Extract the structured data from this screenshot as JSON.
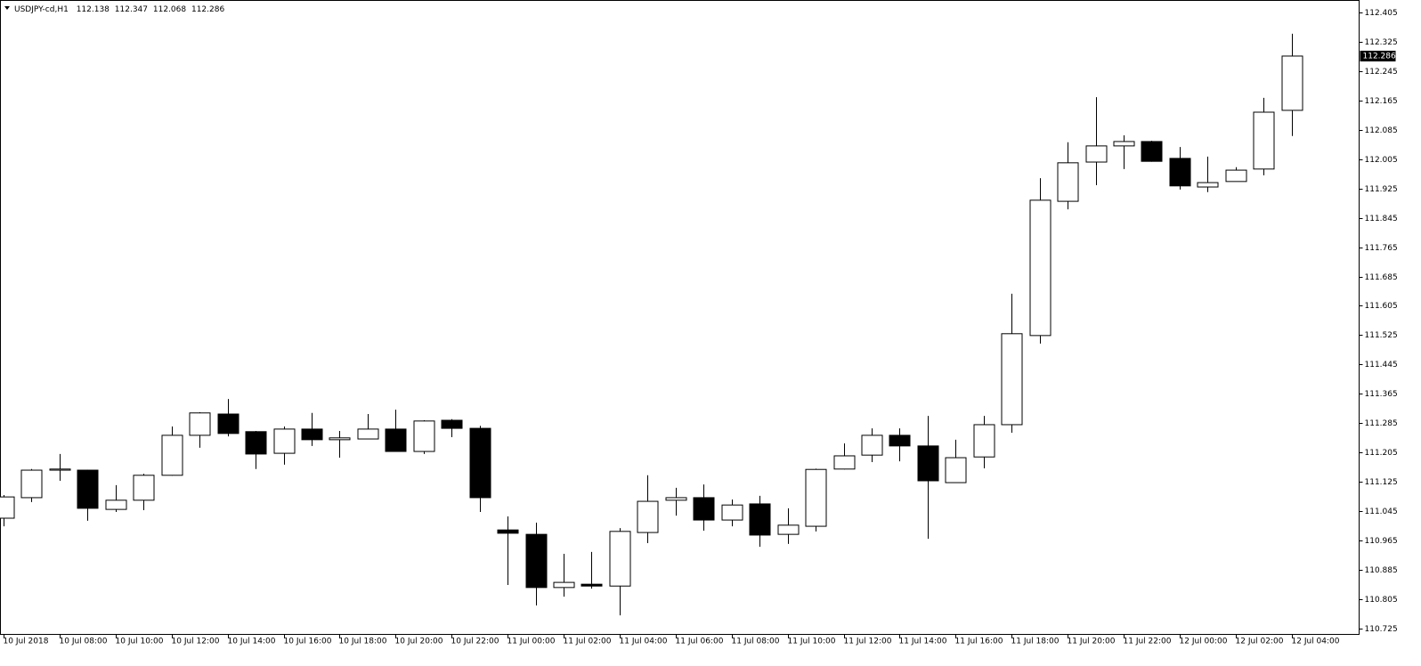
{
  "chart_data": {
    "type": "candlestick",
    "title": "USDJPY-cd,H1",
    "categories": [
      "10 Jul 2018",
      null,
      "10 Jul 08:00",
      null,
      "10 Jul 10:00",
      null,
      "10 Jul 12:00",
      null,
      "10 Jul 14:00",
      null,
      "10 Jul 16:00",
      null,
      "10 Jul 18:00",
      null,
      "10 Jul 20:00",
      null,
      "10 Jul 22:00",
      null,
      "11 Jul 00:00",
      null,
      "11 Jul 02:00",
      null,
      "11 Jul 04:00",
      null,
      "11 Jul 06:00",
      null,
      "11 Jul 08:00",
      null,
      "11 Jul 10:00",
      null,
      "11 Jul 12:00",
      null,
      "11 Jul 14:00",
      null,
      "11 Jul 16:00",
      null,
      "11 Jul 18:00",
      null,
      "11 Jul 20:00",
      null,
      "11 Jul 22:00",
      null,
      "12 Jul 00:00",
      null,
      "12 Jul 02:00",
      null,
      "12 Jul 04:00"
    ],
    "open": [
      111.026,
      111.082,
      111.157,
      111.157,
      111.05,
      111.075,
      111.143,
      111.252,
      111.31,
      111.262,
      111.203,
      111.269,
      111.24,
      111.242,
      111.269,
      111.208,
      111.293,
      111.271,
      110.994,
      110.982,
      110.837,
      110.846,
      110.841,
      110.987,
      111.075,
      111.082,
      111.021,
      111.065,
      110.982,
      111.004,
      111.16,
      111.198,
      111.252,
      111.223,
      111.123,
      111.193,
      111.281,
      111.524,
      111.89,
      111.997,
      112.041,
      112.053,
      112.007,
      111.929,
      111.944,
      111.978,
      112.138
    ],
    "high": [
      111.089,
      111.16,
      111.201,
      111.158,
      111.116,
      111.147,
      111.276,
      111.315,
      111.351,
      111.264,
      111.276,
      111.313,
      111.264,
      111.31,
      111.322,
      111.293,
      111.296,
      111.278,
      111.031,
      111.014,
      110.929,
      110.934,
      110.999,
      111.143,
      111.109,
      111.118,
      111.077,
      111.087,
      111.053,
      111.161,
      111.23,
      111.271,
      111.271,
      111.305,
      111.24,
      111.305,
      111.638,
      111.953,
      112.051,
      112.174,
      112.07,
      112.055,
      112.038,
      112.012,
      111.983,
      112.172,
      112.347
    ],
    "low": [
      111.004,
      111.07,
      111.128,
      111.019,
      111.043,
      111.048,
      111.142,
      111.218,
      111.249,
      111.16,
      111.172,
      111.223,
      111.191,
      111.241,
      111.207,
      111.201,
      111.247,
      111.043,
      110.844,
      110.788,
      110.812,
      110.834,
      110.761,
      110.958,
      111.033,
      110.992,
      111.004,
      110.948,
      110.956,
      110.99,
      111.159,
      111.179,
      111.181,
      110.97,
      111.122,
      111.162,
      111.259,
      111.502,
      111.868,
      111.934,
      111.978,
      111.998,
      111.922,
      111.915,
      111.958,
      111.961,
      112.068
    ],
    "close": [
      111.084,
      111.157,
      111.16,
      111.053,
      111.075,
      111.143,
      111.252,
      111.313,
      111.257,
      111.201,
      111.269,
      111.24,
      111.245,
      111.269,
      111.208,
      111.291,
      111.271,
      111.082,
      110.985,
      110.837,
      110.851,
      110.841,
      110.99,
      111.072,
      111.082,
      111.021,
      111.062,
      110.98,
      111.007,
      111.159,
      111.196,
      111.252,
      111.223,
      111.128,
      111.191,
      111.281,
      111.529,
      111.893,
      111.995,
      112.041,
      112.053,
      111.999,
      111.932,
      111.941,
      111.975,
      112.133,
      112.286
    ],
    "up_color": "#ffffff",
    "down_color": "#000000",
    "ylim": [
      110.708,
      112.434
    ],
    "yticks": [
      112.405,
      112.325,
      112.245,
      112.165,
      112.085,
      112.005,
      111.925,
      111.845,
      111.765,
      111.685,
      111.605,
      111.525,
      111.445,
      111.365,
      111.285,
      111.205,
      111.125,
      111.045,
      110.965,
      110.885,
      110.805,
      110.725
    ]
  }
}
